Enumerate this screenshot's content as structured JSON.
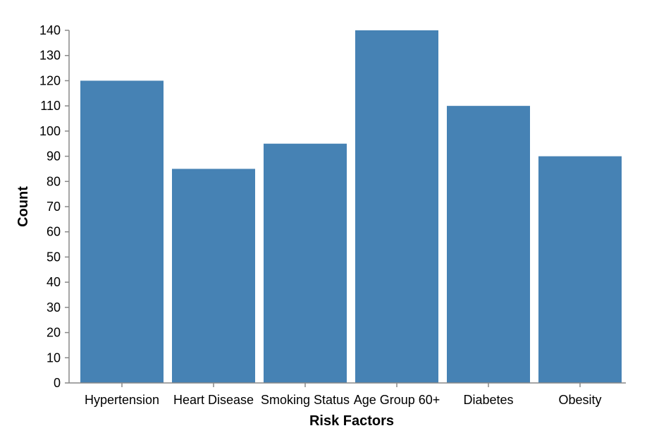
{
  "chart_data": {
    "type": "bar",
    "title": "",
    "xlabel": "Risk Factors",
    "ylabel": "Count",
    "categories": [
      "Hypertension",
      "Heart Disease",
      "Smoking Status",
      "Age Group 60+",
      "Diabetes",
      "Obesity"
    ],
    "values": [
      120,
      85,
      95,
      140,
      110,
      90
    ],
    "ylim": [
      0,
      140
    ],
    "yticks": [
      0,
      10,
      20,
      30,
      40,
      50,
      60,
      70,
      80,
      90,
      100,
      110,
      120,
      130,
      140
    ],
    "grid": false,
    "bar_color": "#4682b4",
    "axis_color": "#888888"
  }
}
